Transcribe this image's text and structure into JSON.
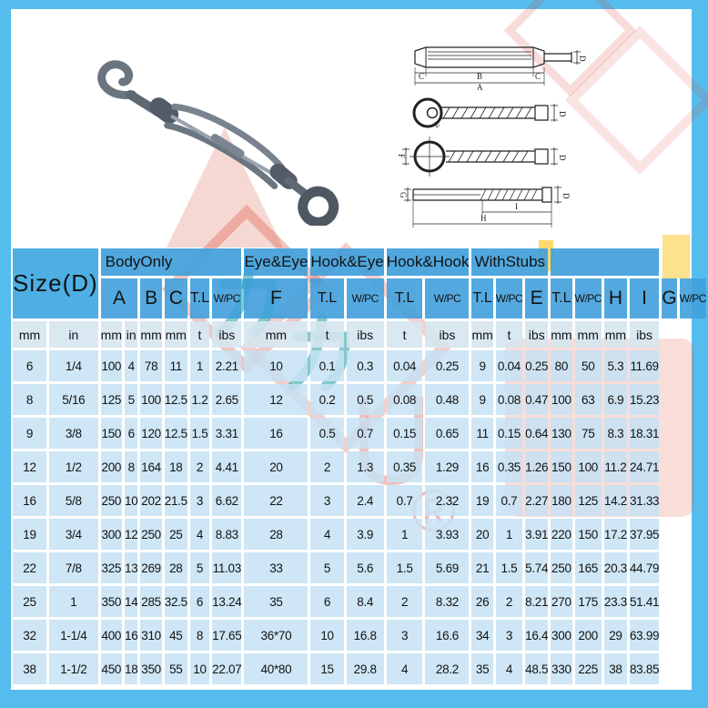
{
  "colors": {
    "frame_border": "#55bdee",
    "header_blue": "#40a0db",
    "unit_row": "#d5e5f0",
    "data_cell": "#c6e2f3",
    "watermark_red": "#d53f30",
    "watermark_teal": "#0d9498",
    "watermark_yellow": "#fcc82f",
    "watermark_pink": "#f6d8d2"
  },
  "photo": {
    "description": "hook-and-eye turnbuckle product photo"
  },
  "drawings": {
    "body": {
      "dims": {
        "c_left": "C",
        "b": "B",
        "c_right": "C",
        "a": "A",
        "d": "D"
      }
    },
    "eye_bolt": {
      "dims": {
        "e": "E",
        "d": "D"
      }
    },
    "eye_front": {
      "dims": {
        "f": "F",
        "d": "D"
      }
    },
    "stub": {
      "dims": {
        "g": "G",
        "d": "D",
        "i": "I",
        "h": "H"
      }
    }
  },
  "watermark": {
    "registered_mark": "®"
  },
  "table": {
    "corner_label": "Size(D)",
    "groups": [
      {
        "label": "BodyOnly",
        "colspan": 6,
        "align": "left"
      },
      {
        "label": "Eye&Eye",
        "colspan": 1
      },
      {
        "label": "Hook&Eye",
        "colspan": 2
      },
      {
        "label": "Hook&Hook",
        "colspan": 2
      },
      {
        "label": "WithStubs",
        "colspan": 3
      },
      {
        "label": "",
        "colspan": 4
      }
    ],
    "subheaders": [
      {
        "label": "A",
        "colspan": 2
      },
      {
        "label": "B"
      },
      {
        "label": "C"
      },
      {
        "label": "T.L"
      },
      {
        "label": "W/PC"
      },
      {
        "label": "F"
      },
      {
        "label": "T.L"
      },
      {
        "label": "W/PC"
      },
      {
        "label": "T.L"
      },
      {
        "label": "W/PC"
      },
      {
        "label": "T.L"
      },
      {
        "label": "W/PC"
      },
      {
        "label": "E"
      },
      {
        "label": "T.L"
      },
      {
        "label": "W/PC"
      },
      {
        "label": "H"
      },
      {
        "label": "I"
      },
      {
        "label": "G"
      },
      {
        "label": "W/PC"
      }
    ],
    "units": [
      "mm",
      "in",
      "mm",
      "in",
      "mm",
      "mm",
      "t",
      "ibs",
      "mm",
      "t",
      "ibs",
      "t",
      "ibs",
      "mm",
      "t",
      "ibs",
      "mm",
      "mm",
      "mm",
      "ibs"
    ],
    "rows": [
      [
        "6",
        "1/4",
        "100",
        "4",
        "78",
        "11",
        "1",
        "2.21",
        "10",
        "0.1",
        "0.3",
        "0.04",
        "0.25",
        "9",
        "0.04",
        "0.25",
        "80",
        "50",
        "5.3",
        "11.69"
      ],
      [
        "8",
        "5/16",
        "125",
        "5",
        "100",
        "12.5",
        "1.2",
        "2.65",
        "12",
        "0.2",
        "0.5",
        "0.08",
        "0.48",
        "9",
        "0.08",
        "0.47",
        "100",
        "63",
        "6.9",
        "15.23"
      ],
      [
        "9",
        "3/8",
        "150",
        "6",
        "120",
        "12.5",
        "1.5",
        "3.31",
        "16",
        "0.5",
        "0.7",
        "0.15",
        "0.65",
        "11",
        "0.15",
        "0.64",
        "130",
        "75",
        "8.3",
        "18.31"
      ],
      [
        "12",
        "1/2",
        "200",
        "8",
        "164",
        "18",
        "2",
        "4.41",
        "20",
        "2",
        "1.3",
        "0.35",
        "1.29",
        "16",
        "0.35",
        "1.26",
        "150",
        "100",
        "11.2",
        "24.71"
      ],
      [
        "16",
        "5/8",
        "250",
        "10",
        "202",
        "21.5",
        "3",
        "6.62",
        "22",
        "3",
        "2.4",
        "0.7",
        "2.32",
        "19",
        "0.7",
        "2.27",
        "180",
        "125",
        "14.2",
        "31.33"
      ],
      [
        "19",
        "3/4",
        "300",
        "12",
        "250",
        "25",
        "4",
        "8.83",
        "28",
        "4",
        "3.9",
        "1",
        "3.93",
        "20",
        "1",
        "3.91",
        "220",
        "150",
        "17.2",
        "37.95"
      ],
      [
        "22",
        "7/8",
        "325",
        "13",
        "269",
        "28",
        "5",
        "11.03",
        "33",
        "5",
        "5.6",
        "1.5",
        "5.69",
        "21",
        "1.5",
        "5.74",
        "250",
        "165",
        "20.3",
        "44.79"
      ],
      [
        "25",
        "1",
        "350",
        "14",
        "285",
        "32.5",
        "6",
        "13.24",
        "35",
        "6",
        "8.4",
        "2",
        "8.32",
        "26",
        "2",
        "8.21",
        "270",
        "175",
        "23.3",
        "51.41"
      ],
      [
        "32",
        "1-1/4",
        "400",
        "16",
        "310",
        "45",
        "8",
        "17.65",
        "36*70",
        "10",
        "16.8",
        "3",
        "16.6",
        "34",
        "3",
        "16.4",
        "300",
        "200",
        "29",
        "63.99"
      ],
      [
        "38",
        "1-1/2",
        "450",
        "18",
        "350",
        "55",
        "10",
        "22.07",
        "40*80",
        "15",
        "29.8",
        "4",
        "28.2",
        "35",
        "4",
        "48.5",
        "330",
        "225",
        "38",
        "83.85"
      ]
    ]
  }
}
